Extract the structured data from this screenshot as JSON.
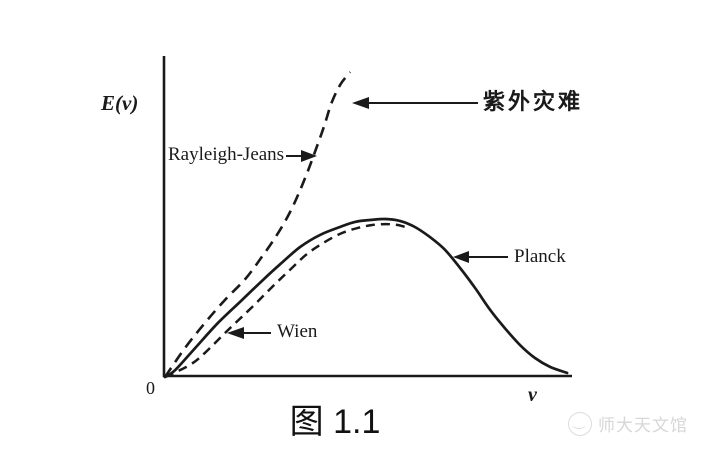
{
  "figure": {
    "caption": "图 1.1",
    "y_axis_label": "E(ν)",
    "x_axis_label": "ν",
    "origin_label": "0"
  },
  "annotations": {
    "ultraviolet_catastrophe": "紫外灾难",
    "rayleigh_jeans": "Rayleigh-Jeans",
    "planck": "Planck",
    "wien": "Wien"
  },
  "watermark": {
    "text": "师大天文馆"
  },
  "colors": {
    "ink": "#1a1a1a",
    "background": "#ffffff",
    "watermark": "#d7d7d7"
  },
  "chart_data": {
    "type": "line",
    "title": "图 1.1",
    "xlabel": "ν",
    "ylabel": "E(ν)",
    "axes_note": "qualitative sketch; no numeric ticks; axes start at 0; coordinates below are normalized 0-1 within the plot box",
    "grid": false,
    "legend_position": "inline-arrow-annotations",
    "series": [
      {
        "id": "rayleigh-jeans",
        "name": "Rayleigh-Jeans",
        "style": "dashed",
        "points": [
          [
            0.0,
            0.003
          ],
          [
            0.049,
            0.094
          ],
          [
            0.098,
            0.173
          ],
          [
            0.147,
            0.245
          ],
          [
            0.197,
            0.311
          ],
          [
            0.238,
            0.381
          ],
          [
            0.275,
            0.45
          ],
          [
            0.305,
            0.516
          ],
          [
            0.329,
            0.582
          ],
          [
            0.351,
            0.651
          ],
          [
            0.371,
            0.72
          ],
          [
            0.391,
            0.792
          ],
          [
            0.41,
            0.868
          ],
          [
            0.432,
            0.925
          ],
          [
            0.455,
            0.962
          ]
        ]
      },
      {
        "id": "planck",
        "name": "Planck",
        "style": "solid",
        "points": [
          [
            0.0,
            0.003
          ],
          [
            0.025,
            0.025
          ],
          [
            0.074,
            0.094
          ],
          [
            0.13,
            0.173
          ],
          [
            0.189,
            0.245
          ],
          [
            0.238,
            0.305
          ],
          [
            0.283,
            0.358
          ],
          [
            0.332,
            0.412
          ],
          [
            0.381,
            0.45
          ],
          [
            0.43,
            0.475
          ],
          [
            0.467,
            0.491
          ],
          [
            0.504,
            0.497
          ],
          [
            0.541,
            0.5
          ],
          [
            0.577,
            0.494
          ],
          [
            0.614,
            0.475
          ],
          [
            0.651,
            0.443
          ],
          [
            0.688,
            0.403
          ],
          [
            0.725,
            0.346
          ],
          [
            0.762,
            0.283
          ],
          [
            0.799,
            0.214
          ],
          [
            0.835,
            0.157
          ],
          [
            0.872,
            0.104
          ],
          [
            0.909,
            0.063
          ],
          [
            0.946,
            0.035
          ],
          [
            0.988,
            0.016
          ]
        ]
      },
      {
        "id": "wien",
        "name": "Wien",
        "style": "dashed",
        "points": [
          [
            0.0,
            0.003
          ],
          [
            0.061,
            0.041
          ],
          [
            0.098,
            0.079
          ],
          [
            0.155,
            0.151
          ],
          [
            0.214,
            0.223
          ],
          [
            0.263,
            0.286
          ],
          [
            0.307,
            0.34
          ],
          [
            0.349,
            0.39
          ],
          [
            0.393,
            0.428
          ],
          [
            0.435,
            0.456
          ],
          [
            0.474,
            0.472
          ],
          [
            0.509,
            0.481
          ],
          [
            0.543,
            0.484
          ],
          [
            0.572,
            0.481
          ],
          [
            0.597,
            0.472
          ]
        ]
      }
    ]
  }
}
